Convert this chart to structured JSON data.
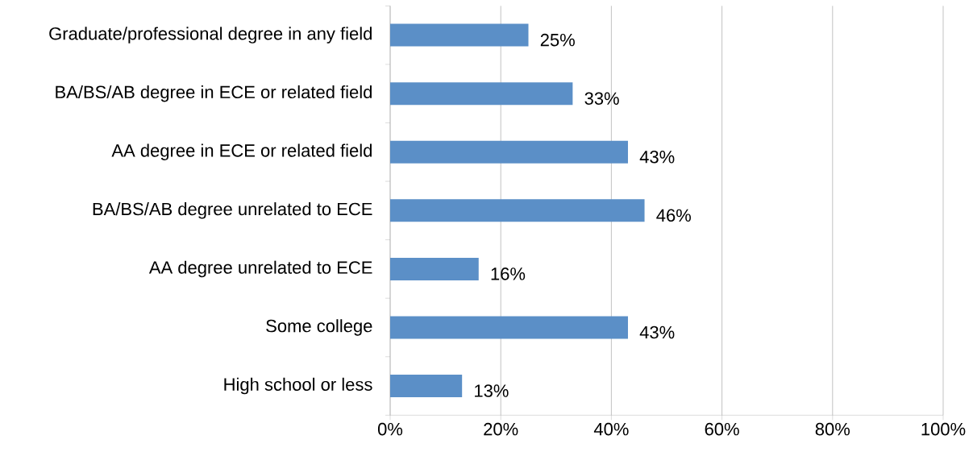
{
  "chart_data": {
    "type": "bar",
    "orientation": "horizontal",
    "categories": [
      "Graduate/professional degree in any field",
      "BA/BS/AB degree in ECE or related field",
      "AA degree in ECE or related field",
      "BA/BS/AB degree unrelated to ECE",
      "AA degree unrelated to ECE",
      "Some college",
      "High school or less"
    ],
    "values": [
      25,
      33,
      43,
      46,
      16,
      43,
      13
    ],
    "value_labels": [
      "25%",
      "33%",
      "43%",
      "46%",
      "16%",
      "43%",
      "13%"
    ],
    "color": "#5b8fc7",
    "xlim": [
      0,
      100
    ],
    "xticks": [
      {
        "value": 0,
        "label": "0%"
      },
      {
        "value": 20,
        "label": "20%"
      },
      {
        "value": 40,
        "label": "40%"
      },
      {
        "value": 60,
        "label": "60%"
      },
      {
        "value": 80,
        "label": "80%"
      },
      {
        "value": 100,
        "label": "100%"
      }
    ],
    "grid": "x"
  }
}
